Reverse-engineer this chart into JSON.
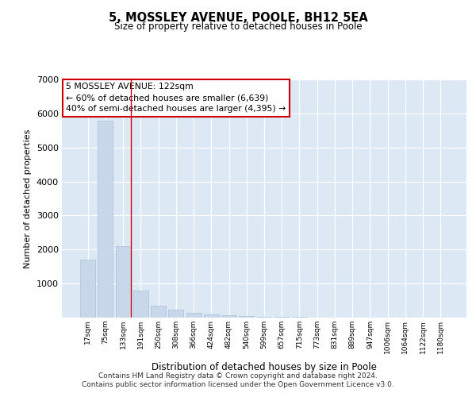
{
  "title1": "5, MOSSLEY AVENUE, POOLE, BH12 5EA",
  "title2": "Size of property relative to detached houses in Poole",
  "xlabel": "Distribution of detached houses by size in Poole",
  "ylabel": "Number of detached properties",
  "bar_labels": [
    "17sqm",
    "75sqm",
    "133sqm",
    "191sqm",
    "250sqm",
    "308sqm",
    "366sqm",
    "424sqm",
    "482sqm",
    "540sqm",
    "599sqm",
    "657sqm",
    "715sqm",
    "773sqm",
    "831sqm",
    "889sqm",
    "947sqm",
    "1006sqm",
    "1064sqm",
    "1122sqm",
    "1180sqm"
  ],
  "bar_values": [
    1700,
    5780,
    2100,
    800,
    340,
    225,
    150,
    95,
    75,
    55,
    32,
    25,
    20,
    0,
    0,
    0,
    0,
    0,
    0,
    0,
    0
  ],
  "bar_color": "#c8d8ea",
  "bar_edge_color": "#a8c0d8",
  "highlight_color": "#cc0000",
  "annotation_title": "5 MOSSLEY AVENUE: 122sqm",
  "annotation_line1": "← 60% of detached houses are smaller (6,639)",
  "annotation_line2": "40% of semi-detached houses are larger (4,395) →",
  "ylim": [
    0,
    7000
  ],
  "yticks": [
    0,
    1000,
    2000,
    3000,
    4000,
    5000,
    6000,
    7000
  ],
  "footer1": "Contains HM Land Registry data © Crown copyright and database right 2024.",
  "footer2": "Contains public sector information licensed under the Open Government Licence v3.0.",
  "bg_color": "#dce8f4",
  "fig_bg_color": "#ffffff"
}
